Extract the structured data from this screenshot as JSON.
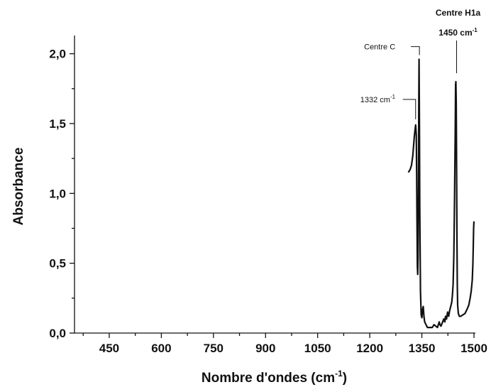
{
  "chart_data": {
    "type": "line",
    "xlabel_main": "Nombre d'ondes (cm",
    "xlabel_sup": "-1",
    "xlabel_end": ")",
    "ylabel": "Absorbance",
    "xlim": [
      350,
      1500
    ],
    "ylim": [
      0,
      2.1
    ],
    "x_ticks": [
      450,
      600,
      750,
      900,
      1050,
      1200,
      1350,
      1500
    ],
    "x_tick_labels": [
      "450",
      "600",
      "750",
      "900",
      "1050",
      "1200",
      "1350",
      "1500"
    ],
    "y_ticks": [
      0.0,
      0.5,
      1.0,
      1.5,
      2.0
    ],
    "y_tick_labels": [
      "0,0",
      "0,5",
      "1,0",
      "1,5",
      "2,0"
    ],
    "series": [
      {
        "x": [
          1311,
          1316,
          1320,
          1324,
          1328,
          1330,
          1332,
          1334,
          1335,
          1336,
          1337,
          1338,
          1339,
          1340,
          1341,
          1342,
          1343,
          1344,
          1346,
          1348,
          1350,
          1352,
          1354,
          1356,
          1358,
          1362,
          1366,
          1372,
          1380,
          1385,
          1390,
          1395,
          1400,
          1402,
          1405,
          1410,
          1413,
          1416,
          1418,
          1421,
          1424,
          1427,
          1430,
          1433,
          1436,
          1438,
          1440,
          1442,
          1444,
          1446,
          1447,
          1448,
          1449,
          1450,
          1451,
          1452,
          1453,
          1455,
          1458,
          1462,
          1468,
          1474,
          1480,
          1485,
          1489,
          1492,
          1495,
          1497,
          1498,
          1499,
          1500
        ],
        "y": [
          1.15,
          1.17,
          1.2,
          1.27,
          1.4,
          1.45,
          1.49,
          1.42,
          1.15,
          0.8,
          0.48,
          0.42,
          0.55,
          1.0,
          1.62,
          1.96,
          1.55,
          0.9,
          0.3,
          0.13,
          0.11,
          0.17,
          0.19,
          0.12,
          0.08,
          0.06,
          0.04,
          0.04,
          0.04,
          0.06,
          0.05,
          0.04,
          0.08,
          0.06,
          0.05,
          0.08,
          0.1,
          0.08,
          0.12,
          0.1,
          0.15,
          0.12,
          0.16,
          0.19,
          0.22,
          0.27,
          0.35,
          0.55,
          0.95,
          1.45,
          1.78,
          1.8,
          1.65,
          1.2,
          0.7,
          0.35,
          0.2,
          0.14,
          0.12,
          0.12,
          0.13,
          0.14,
          0.17,
          0.2,
          0.25,
          0.3,
          0.38,
          0.5,
          0.62,
          0.75,
          0.8
        ]
      }
    ],
    "annotations": [
      {
        "text": "1332 cm",
        "sup": "-1",
        "x": 1332,
        "y": 1.5
      },
      {
        "text": "Centre C",
        "sup": "",
        "x": 1343,
        "y": 1.97
      },
      {
        "text": "Centre H1a",
        "sup": "",
        "x": 1450,
        "y": 1.82
      },
      {
        "text": "1450 cm",
        "sup": "-1",
        "x": 1450,
        "y": 1.82
      }
    ]
  }
}
